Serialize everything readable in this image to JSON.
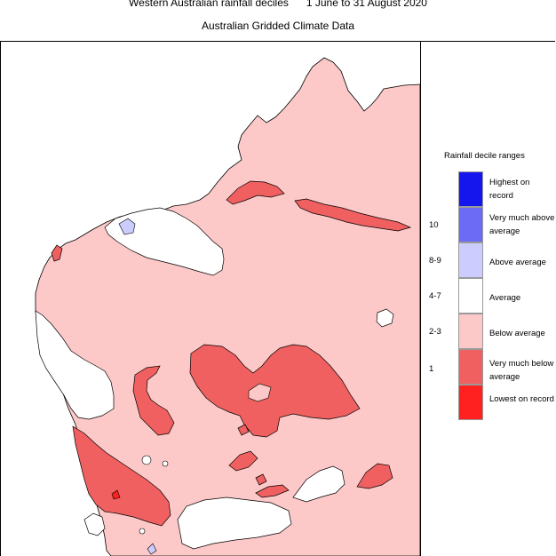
{
  "header": {
    "title": "Western Australian rainfall deciles      1 June to 31 August 2020",
    "subtitle": "Australian Gridded Climate Data"
  },
  "colors": {
    "lowest_on_record": "#ff2020",
    "very_much_below": "#f06060",
    "below": "#fcc8c8",
    "average": "#ffffff",
    "above": "#ccccff",
    "very_much_above": "#6b6bf5",
    "highest_on_record": "#1515ee"
  },
  "legend": {
    "title": "Rainfall decile ranges",
    "categories": [
      {
        "label": "Highest on record",
        "color": "#1515ee"
      },
      {
        "label": "Very much above average",
        "color": "#6b6bf5"
      },
      {
        "label": "Above average",
        "color": "#ccccff"
      },
      {
        "label": "Average",
        "color": "#ffffff"
      },
      {
        "label": "Below average",
        "color": "#fcc8c8"
      },
      {
        "label": "Very much below average",
        "color": "#f06060"
      },
      {
        "label": "Lowest on record",
        "color": "#ff2020"
      }
    ],
    "deciles": [
      "10",
      "8-9",
      "4-7",
      "2-3",
      "1"
    ]
  }
}
